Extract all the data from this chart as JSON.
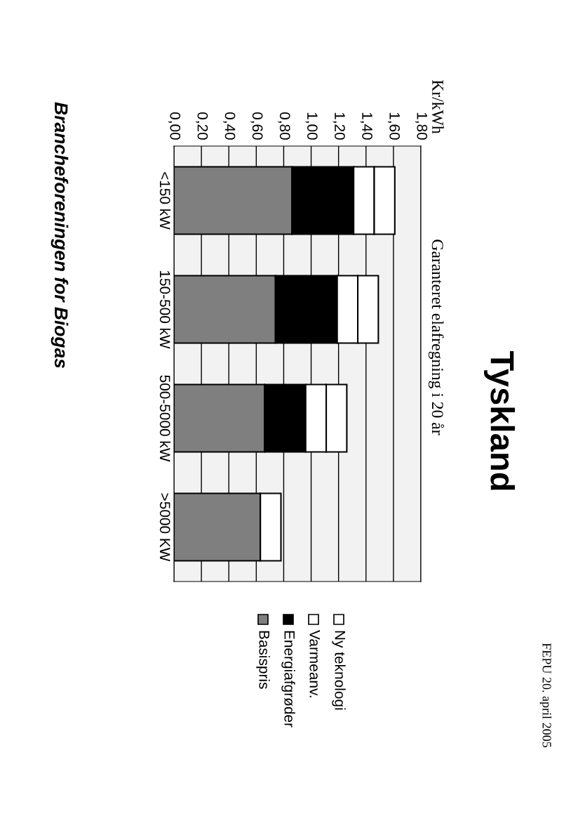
{
  "chart_data": {
    "type": "bar",
    "orientation": "horizontal",
    "stacked": true,
    "title": "Tyskland",
    "subtitle": "Garanteret elafregning i 20 år",
    "ylabel": "Kr/kWh",
    "categories": [
      "<150 kW",
      "150-500 kW",
      "500-5000 kW",
      ">5000 KW"
    ],
    "series": [
      {
        "name": "Basispris",
        "color": "#7f7f7f",
        "values": [
          0.86,
          0.74,
          0.66,
          0.63
        ]
      },
      {
        "name": "Energiafgrøder",
        "color": "#000000",
        "values": [
          0.45,
          0.45,
          0.3,
          null
        ]
      },
      {
        "name": "Varmeanv.",
        "color": "#ffffff",
        "values": [
          0.15,
          0.15,
          0.15,
          0.15
        ]
      },
      {
        "name": "Ny teknologi",
        "color": "#ffffff",
        "values": [
          0.15,
          0.15,
          0.15,
          null
        ]
      }
    ],
    "xlim": [
      0,
      1.8
    ],
    "xticks": [
      {
        "value": 0,
        "label": "0,00"
      },
      {
        "value": 0.2,
        "label": "0,20"
      },
      {
        "value": 0.4,
        "label": "0,40"
      },
      {
        "value": 0.6,
        "label": "0,60"
      },
      {
        "value": 0.8,
        "label": "0,80"
      },
      {
        "value": 1.0,
        "label": "1,00"
      },
      {
        "value": 1.2,
        "label": "1,20"
      },
      {
        "value": 1.4,
        "label": "1,40"
      },
      {
        "value": 1.6,
        "label": "1,60"
      },
      {
        "value": 1.8,
        "label": "1,80"
      }
    ],
    "grid": "x",
    "legend": "bottom",
    "annotations": [
      "FEPU 20. april 2005",
      "Brancheforeningen for Biogas"
    ]
  }
}
